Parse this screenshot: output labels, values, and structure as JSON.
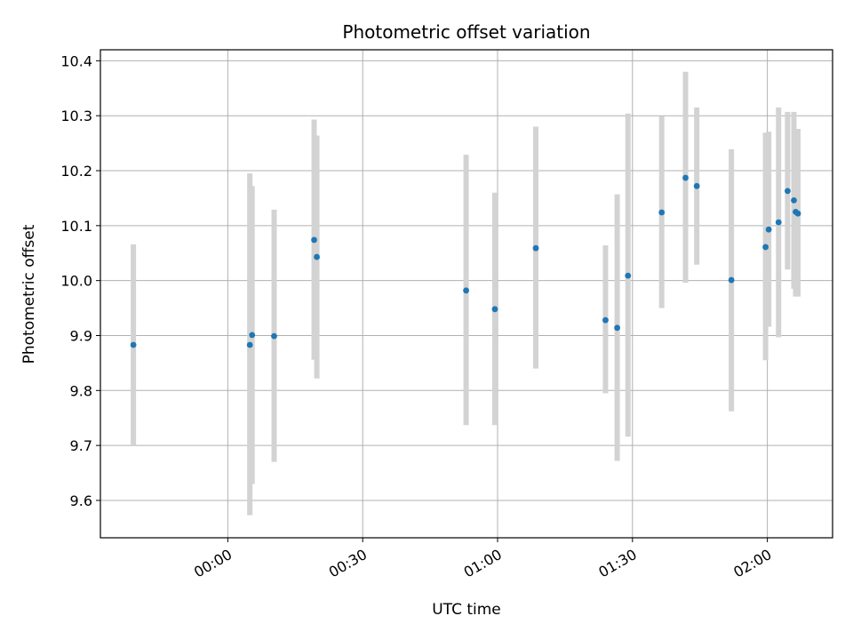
{
  "chart_data": {
    "type": "scatter",
    "title": "Photometric offset variation",
    "xlabel": "UTC time",
    "ylabel": "Photometric offset",
    "x_ticks": [
      {
        "value": 0,
        "label": "00:00"
      },
      {
        "value": 30,
        "label": "00:30"
      },
      {
        "value": 60,
        "label": "01:00"
      },
      {
        "value": 90,
        "label": "01:30"
      },
      {
        "value": 120,
        "label": "02:00"
      }
    ],
    "y_ticks": [
      "9.6",
      "9.7",
      "9.8",
      "9.9",
      "10.0",
      "10.1",
      "10.2",
      "10.3",
      "10.4"
    ],
    "xlim": [
      "23:31:40",
      "02:14:30"
    ],
    "ylim": [
      9.532,
      10.42
    ],
    "grid": true,
    "marker_color": "#1f77b4",
    "errorbar_color": "#d3d3d3",
    "points": [
      {
        "x": "23:39:00",
        "y": 9.883,
        "low": 9.7,
        "high": 10.066
      },
      {
        "x": "00:04:54",
        "y": 9.883,
        "low": 9.573,
        "high": 10.195
      },
      {
        "x": "00:05:24",
        "y": 9.901,
        "low": 9.63,
        "high": 10.172
      },
      {
        "x": "00:10:18",
        "y": 9.899,
        "low": 9.67,
        "high": 10.129
      },
      {
        "x": "00:19:12",
        "y": 10.074,
        "low": 9.856,
        "high": 10.293
      },
      {
        "x": "00:19:48",
        "y": 10.043,
        "low": 9.822,
        "high": 10.264
      },
      {
        "x": "00:53:00",
        "y": 9.982,
        "low": 9.737,
        "high": 10.229
      },
      {
        "x": "00:59:24",
        "y": 9.948,
        "low": 9.737,
        "high": 10.16
      },
      {
        "x": "01:08:30",
        "y": 10.059,
        "low": 9.84,
        "high": 10.28
      },
      {
        "x": "01:24:00",
        "y": 9.928,
        "low": 9.795,
        "high": 10.064
      },
      {
        "x": "01:26:36",
        "y": 9.914,
        "low": 9.672,
        "high": 10.157
      },
      {
        "x": "01:29:00",
        "y": 10.009,
        "low": 9.716,
        "high": 10.304
      },
      {
        "x": "01:36:30",
        "y": 10.124,
        "low": 9.95,
        "high": 10.299
      },
      {
        "x": "01:41:48",
        "y": 10.187,
        "low": 9.996,
        "high": 10.38
      },
      {
        "x": "01:44:18",
        "y": 10.172,
        "low": 10.029,
        "high": 10.315
      },
      {
        "x": "01:52:00",
        "y": 10.001,
        "low": 9.762,
        "high": 10.239
      },
      {
        "x": "01:59:36",
        "y": 10.061,
        "low": 9.855,
        "high": 10.269
      },
      {
        "x": "02:00:18",
        "y": 10.093,
        "low": 9.916,
        "high": 10.271
      },
      {
        "x": "02:02:30",
        "y": 10.106,
        "low": 9.897,
        "high": 10.315
      },
      {
        "x": "02:04:30",
        "y": 10.163,
        "low": 10.02,
        "high": 10.307
      },
      {
        "x": "02:05:54",
        "y": 10.146,
        "low": 9.985,
        "high": 10.307
      },
      {
        "x": "02:06:18",
        "y": 10.125,
        "low": 9.971,
        "high": 10.276
      },
      {
        "x": "02:06:48",
        "y": 10.122,
        "low": 9.971,
        "high": 10.276
      }
    ]
  }
}
